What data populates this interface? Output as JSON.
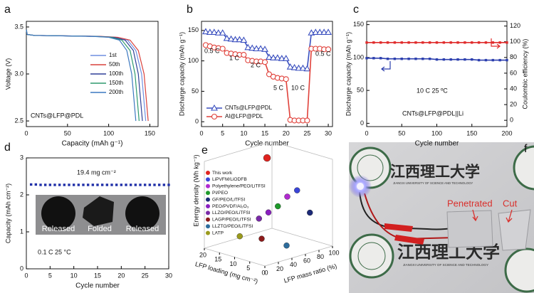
{
  "chart_data": [
    {
      "panel": "a",
      "type": "line",
      "xlabel": "Capacity (mAh g⁻¹)",
      "ylabel": "Voltage (V)",
      "xlim": [
        0,
        160
      ],
      "xticks": [
        0,
        50,
        100,
        150
      ],
      "ylim": [
        2.44,
        3.56
      ],
      "yticks": [
        2.5,
        {
          "value": 3,
          "label": "3.0"
        },
        3.5
      ],
      "legend": true,
      "annotations": [
        "CNTs@LFP@PDL"
      ],
      "series": [
        {
          "name": "1st",
          "color": "#6f8fe0",
          "x": [
            0,
            1,
            10,
            87,
            109,
            123,
            133,
            140,
            145
          ],
          "values": [
            3.47,
            3.42,
            3.41,
            3.4,
            3.39,
            3.36,
            3.25,
            3.0,
            2.5
          ]
        },
        {
          "name": "50th",
          "color": "#d9413c",
          "x": [
            0,
            1,
            10,
            89,
            111,
            126,
            136,
            143,
            148
          ],
          "values": [
            3.47,
            3.42,
            3.41,
            3.4,
            3.39,
            3.36,
            3.25,
            3.0,
            2.5
          ]
        },
        {
          "name": "100th",
          "color": "#2f3f97",
          "x": [
            0,
            1,
            10,
            85,
            106,
            120,
            130,
            136,
            141
          ],
          "values": [
            3.47,
            3.42,
            3.41,
            3.4,
            3.39,
            3.36,
            3.25,
            3.0,
            2.5
          ]
        },
        {
          "name": "150th",
          "color": "#2f9a6e",
          "x": [
            0,
            1,
            10,
            82,
            103,
            116,
            126,
            132,
            137
          ],
          "values": [
            3.47,
            3.42,
            3.41,
            3.4,
            3.39,
            3.36,
            3.25,
            3.0,
            2.5
          ]
        },
        {
          "name": "200th",
          "color": "#3c78c0",
          "x": [
            0,
            1,
            10,
            80,
            100,
            113,
            122,
            128,
            133
          ],
          "values": [
            3.47,
            3.42,
            3.41,
            3.4,
            3.39,
            3.36,
            3.25,
            3.0,
            2.5
          ]
        }
      ]
    },
    {
      "panel": "b",
      "type": "line",
      "xlabel": "Cycle number",
      "ylabel": "Discharge capacity (mAh g⁻¹)",
      "xlim": [
        0,
        31
      ],
      "xticks": [
        0,
        5,
        10,
        15,
        20,
        25,
        30
      ],
      "ylim": [
        -8,
        165
      ],
      "yticks": [
        0,
        50,
        100,
        150
      ],
      "legend": true,
      "annotations": [
        "0.5 C",
        "1 C",
        "2 C",
        "5 C",
        "10 C",
        "0.5 C"
      ],
      "x": [
        1,
        2,
        3,
        4,
        5,
        6,
        7,
        8,
        9,
        10,
        11,
        12,
        13,
        14,
        15,
        16,
        17,
        18,
        19,
        20,
        21,
        22,
        23,
        24,
        25,
        26,
        27,
        28,
        29,
        30
      ],
      "series": [
        {
          "name": "CNTs@LFP@PDL",
          "color": "#3a4fbf",
          "marker": "triangle-open",
          "values": [
            148,
            147,
            147,
            146,
            146,
            137,
            136,
            135,
            135,
            134,
            122,
            121,
            120,
            120,
            119,
            106,
            105,
            105,
            104,
            104,
            90,
            89,
            88,
            88,
            87,
            146,
            147,
            147,
            147,
            147
          ]
        },
        {
          "name": "Al@LFP@PDL",
          "color": "#e0413a",
          "marker": "circle-open",
          "values": [
            126,
            124,
            122,
            121,
            120,
            113,
            112,
            111,
            110,
            110,
            101,
            100,
            99,
            99,
            98,
            78,
            74,
            72,
            71,
            70,
            3,
            2,
            2,
            2,
            2,
            120,
            120,
            120,
            119,
            119
          ]
        }
      ]
    },
    {
      "panel": "c",
      "type": "line",
      "xlabel": "Cycle number",
      "ylabel": "Discharge capacity (mAh g⁻¹)",
      "y2label": "Coulombic efficiency (%)",
      "xlim": [
        0,
        200
      ],
      "xticks": [
        0,
        50,
        100,
        150,
        200
      ],
      "ylim": [
        -5,
        155
      ],
      "yticks": [
        0,
        50,
        100,
        150
      ],
      "y2lim": [
        -8,
        126
      ],
      "y2ticks": [
        0,
        20,
        40,
        60,
        80,
        100,
        120
      ],
      "annotations": [
        "10 C  25 ºC",
        "CNTs@LFP@PDL||Li"
      ],
      "x": [
        0,
        10,
        20,
        30,
        40,
        50,
        60,
        70,
        80,
        90,
        100,
        110,
        120,
        130,
        140,
        150,
        160,
        170,
        180,
        190,
        200
      ],
      "series": [
        {
          "color": "#2c3fae",
          "marker": "square",
          "values": [
            99,
            99,
            99,
            98,
            98,
            98,
            98,
            98,
            98,
            98,
            97,
            97,
            97,
            97,
            97,
            97,
            96,
            96,
            96,
            96,
            96
          ]
        },
        {
          "color": "#e02b2b",
          "marker": "square",
          "axis": "y2",
          "values": [
            99,
            99,
            99,
            99,
            99,
            99,
            99,
            99,
            99,
            99,
            99,
            99,
            99,
            99,
            99,
            99,
            99,
            99,
            99,
            99,
            99
          ]
        }
      ]
    },
    {
      "panel": "d",
      "type": "scatter",
      "xlabel": "Cycle number",
      "ylabel": "Capacity (mAh cm⁻²)",
      "xlim": [
        0,
        30
      ],
      "xticks": [
        0,
        5,
        10,
        15,
        20,
        25,
        30
      ],
      "ylim": [
        0,
        3
      ],
      "yticks": [
        0,
        1,
        2,
        3
      ],
      "annotations": [
        "19.4 mg cm⁻²",
        "0.1 C  25 °C"
      ],
      "inset_labels": [
        "Released",
        "Folded",
        "Released"
      ],
      "x": [
        1,
        2,
        3,
        4,
        5,
        6,
        7,
        8,
        9,
        10,
        11,
        12,
        13,
        14,
        15,
        16,
        17,
        18,
        19,
        20,
        21,
        22,
        23,
        24,
        25,
        26,
        27,
        28,
        29,
        30
      ],
      "series": [
        {
          "color": "#1f2fa8",
          "marker": "square",
          "values": [
            2.28,
            2.28,
            2.27,
            2.27,
            2.27,
            2.27,
            2.27,
            2.27,
            2.27,
            2.27,
            2.27,
            2.27,
            2.27,
            2.27,
            2.27,
            2.27,
            2.27,
            2.27,
            2.27,
            2.27,
            2.27,
            2.27,
            2.27,
            2.27,
            2.27,
            2.27,
            2.27,
            2.27,
            2.27,
            2.27
          ]
        }
      ]
    },
    {
      "panel": "e",
      "type": "scatter3d",
      "xlabel": "LFP mass ratio (%)",
      "ylabel": "LFP loading (mg cm⁻²)",
      "zlabel": "Energy density (Wh kg⁻¹)",
      "xlim": [
        0,
        100
      ],
      "xticks": [
        0,
        20,
        40,
        60,
        80,
        100
      ],
      "ylim": [
        0,
        20
      ],
      "yticks": [
        0,
        5,
        10,
        15,
        20
      ],
      "zlim": [
        0,
        500
      ],
      "legend": true,
      "series": [
        {
          "name": "This work",
          "color": "#e0231f",
          "x": [
            90
          ],
          "y": [
            19.4
          ],
          "z": [
            420
          ]
        },
        {
          "name": "LiPVFM/LiODFB",
          "color": "#3a45d8",
          "x": [
            70
          ],
          "y": [
            5
          ],
          "z": [
            330
          ]
        },
        {
          "name": "Polyethylene/PEO/LiTFSI",
          "color": "#b12ad0",
          "x": [
            60
          ],
          "y": [
            6
          ],
          "z": [
            300
          ]
        },
        {
          "name": "PI/PEO",
          "color": "#1e9a2a",
          "x": [
            55
          ],
          "y": [
            8
          ],
          "z": [
            240
          ]
        },
        {
          "name": "GF/PEO/LiTFSI",
          "color": "#1c2a78",
          "x": [
            80
          ],
          "y": [
            3
          ],
          "z": [
            200
          ]
        },
        {
          "name": "PEO/PVDF/Al₂O₃",
          "color": "#8a1fc0",
          "x": [
            50
          ],
          "y": [
            10
          ],
          "z": [
            200
          ]
        },
        {
          "name": "LLZO/PEO/LiTFSI",
          "color": "#7a2aa8",
          "x": [
            45
          ],
          "y": [
            12
          ],
          "z": [
            160
          ]
        },
        {
          "name": "LAGP/PEO/LiTFSI",
          "color": "#8c1a1a",
          "x": [
            40
          ],
          "y": [
            10
          ],
          "z": [
            60
          ]
        },
        {
          "name": "LLZTO/PEO/LiTFSI",
          "color": "#2d6c9c",
          "x": [
            50
          ],
          "y": [
            4
          ],
          "z": [
            40
          ]
        },
        {
          "name": "LATP",
          "color": "#9a9a1c",
          "x": [
            30
          ],
          "y": [
            15
          ],
          "z": [
            60
          ]
        }
      ]
    }
  ],
  "photo": {
    "panel": "f",
    "logo_text": "江西理工大学",
    "logo_subtext": "JIANGXI UNIVERSITY OF SCIENCE AND TECHNOLOGY",
    "annotations": [
      "Penetrated",
      "Cut"
    ]
  }
}
